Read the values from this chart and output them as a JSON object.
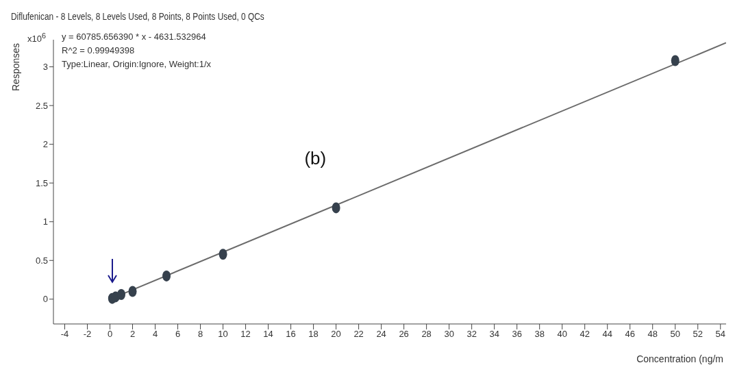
{
  "chart_data": {
    "type": "scatter",
    "title": "Diflufenican - 8 Levels, 8 Levels Used, 8 Points, 8 Points Used, 0 QCs",
    "xlabel": "Concentration (ng/m",
    "ylabel": "Responses",
    "annotations": [
      "x10$^{6}$",
      "y = 60785.656390 * x  - 4631.532964",
      "R^2 = 0.99949398",
      "Type:Linear, Origin:Ignore, Weight:1/x",
      "(b)"
    ],
    "series": [
      {
        "marker": "circle",
        "color": "#36414d",
        "x": [
          0.2,
          0.5,
          1,
          2,
          5,
          10,
          20,
          50
        ],
        "values": [
          0.01,
          0.03,
          0.06,
          0.1,
          0.3,
          0.58,
          1.18,
          3.08
        ]
      },
      {
        "type": "line",
        "marker": "none",
        "color": "#6b6b6b",
        "x": [
          0,
          54.5
        ],
        "values": [
          0,
          3.31
        ]
      }
    ],
    "xlim": [
      -5,
      54.5
    ],
    "xticks": [
      -4,
      -2,
      0,
      2,
      4,
      6,
      8,
      10,
      12,
      14,
      16,
      18,
      20,
      22,
      24,
      26,
      28,
      30,
      32,
      34,
      36,
      38,
      40,
      42,
      44,
      46,
      48,
      50,
      52,
      54
    ],
    "ylim": [
      -0.32,
      3.35
    ],
    "yticks": [
      0,
      0.5,
      1,
      1.5,
      2,
      2.5,
      3
    ],
    "line_style": "solid",
    "grid": false,
    "legend": false
  }
}
